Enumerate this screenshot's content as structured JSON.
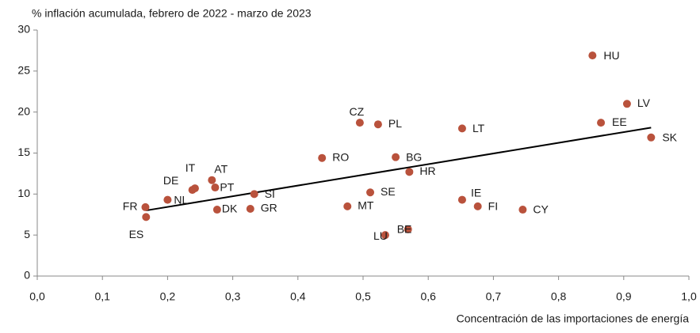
{
  "chart_data": {
    "type": "scatter",
    "title": "% inflación acumulada, febrero de 2022 - marzo de 2023",
    "x_label": "Concentración de las importaciones de energía",
    "series": [
      {
        "color": "#b9523c",
        "labels": [
          "HU",
          "LV",
          "EE",
          "SK",
          "LT",
          "CZ",
          "PL",
          "RO",
          "BG",
          "HR",
          "SE",
          "IE",
          "FI",
          "CY",
          "MT",
          "BE",
          "LU",
          "SI",
          "GR",
          "DK",
          "PT",
          "AT",
          "IT",
          "DE",
          "NL",
          "FR",
          "ES"
        ],
        "x": [
          0.852,
          0.905,
          0.865,
          0.942,
          0.652,
          0.495,
          0.523,
          0.437,
          0.55,
          0.571,
          0.511,
          0.652,
          0.676,
          0.745,
          0.476,
          0.569,
          0.534,
          0.333,
          0.327,
          0.276,
          0.273,
          0.268,
          0.242,
          0.238,
          0.2,
          0.166,
          0.167
        ],
        "values": [
          26.9,
          21.0,
          18.7,
          16.9,
          18.0,
          18.7,
          18.5,
          14.4,
          14.5,
          12.7,
          10.2,
          9.3,
          8.5,
          8.1,
          8.5,
          5.7,
          5.0,
          10.0,
          8.2,
          8.1,
          10.8,
          11.7,
          10.7,
          10.5,
          9.3,
          8.4,
          7.2
        ]
      }
    ],
    "trendline": {
      "color": "#000000",
      "x": [
        0.167,
        0.942
      ],
      "values": [
        8.0,
        18.1
      ]
    },
    "xlim": [
      0,
      1
    ],
    "xticks": [
      {
        "value": 0,
        "label": "0,0"
      },
      {
        "value": 0.1,
        "label": "0,1"
      },
      {
        "value": 0.2,
        "label": "0,2"
      },
      {
        "value": 0.3,
        "label": "0,3"
      },
      {
        "value": 0.4,
        "label": "0,4"
      },
      {
        "value": 0.5,
        "label": "0,5"
      },
      {
        "value": 0.6,
        "label": "0,6"
      },
      {
        "value": 0.7,
        "label": "0,7"
      },
      {
        "value": 0.8,
        "label": "0,8"
      },
      {
        "value": 0.9,
        "label": "0,9"
      },
      {
        "value": 1,
        "label": "1,0"
      }
    ],
    "ylim": [
      0,
      30
    ],
    "yticks": [
      0,
      5,
      10,
      15,
      20,
      25,
      30
    ],
    "grid": false
  }
}
